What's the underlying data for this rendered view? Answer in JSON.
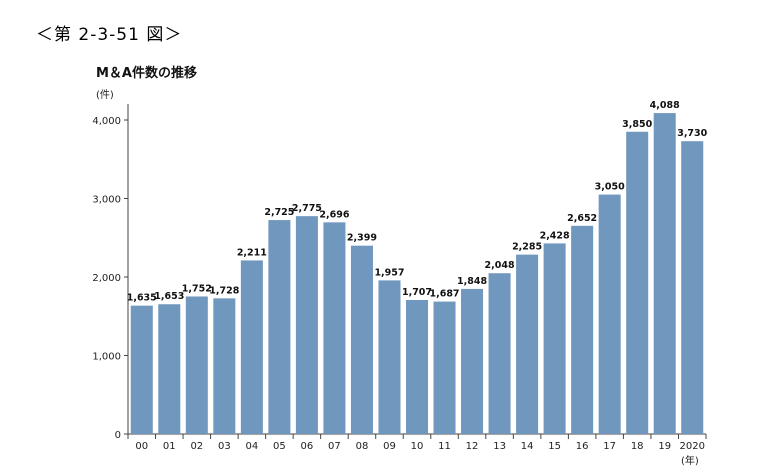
{
  "figure_caption": "＜第 2-3-51 図＞",
  "chart_data": {
    "type": "bar",
    "title": "M＆A件数の推移",
    "ylabel": "(件)",
    "xlabel": "(年)",
    "ylim": [
      0,
      4000
    ],
    "yticks": [
      0,
      1000,
      2000,
      3000,
      4000
    ],
    "ytick_labels": [
      "0",
      "1,000",
      "2,000",
      "3,000",
      "4,000"
    ],
    "categories": [
      "00",
      "01",
      "02",
      "03",
      "04",
      "05",
      "06",
      "07",
      "08",
      "09",
      "10",
      "11",
      "12",
      "13",
      "14",
      "15",
      "16",
      "17",
      "18",
      "19",
      "2020"
    ],
    "values": [
      1635,
      1653,
      1752,
      1728,
      2211,
      2725,
      2775,
      2696,
      2399,
      1957,
      1707,
      1687,
      1848,
      2048,
      2285,
      2428,
      2652,
      3050,
      3850,
      4088,
      3730
    ],
    "value_labels": [
      "1,635",
      "1,653",
      "1,752",
      "1,728",
      "2,211",
      "2,725",
      "2,775",
      "2,696",
      "2,399",
      "1,957",
      "1,707",
      "1,687",
      "1,848",
      "2,048",
      "2,285",
      "2,428",
      "2,652",
      "3,050",
      "3,850",
      "4,088",
      "3,730"
    ],
    "bar_color": "#7097bd",
    "grid": false,
    "legend": "none"
  }
}
